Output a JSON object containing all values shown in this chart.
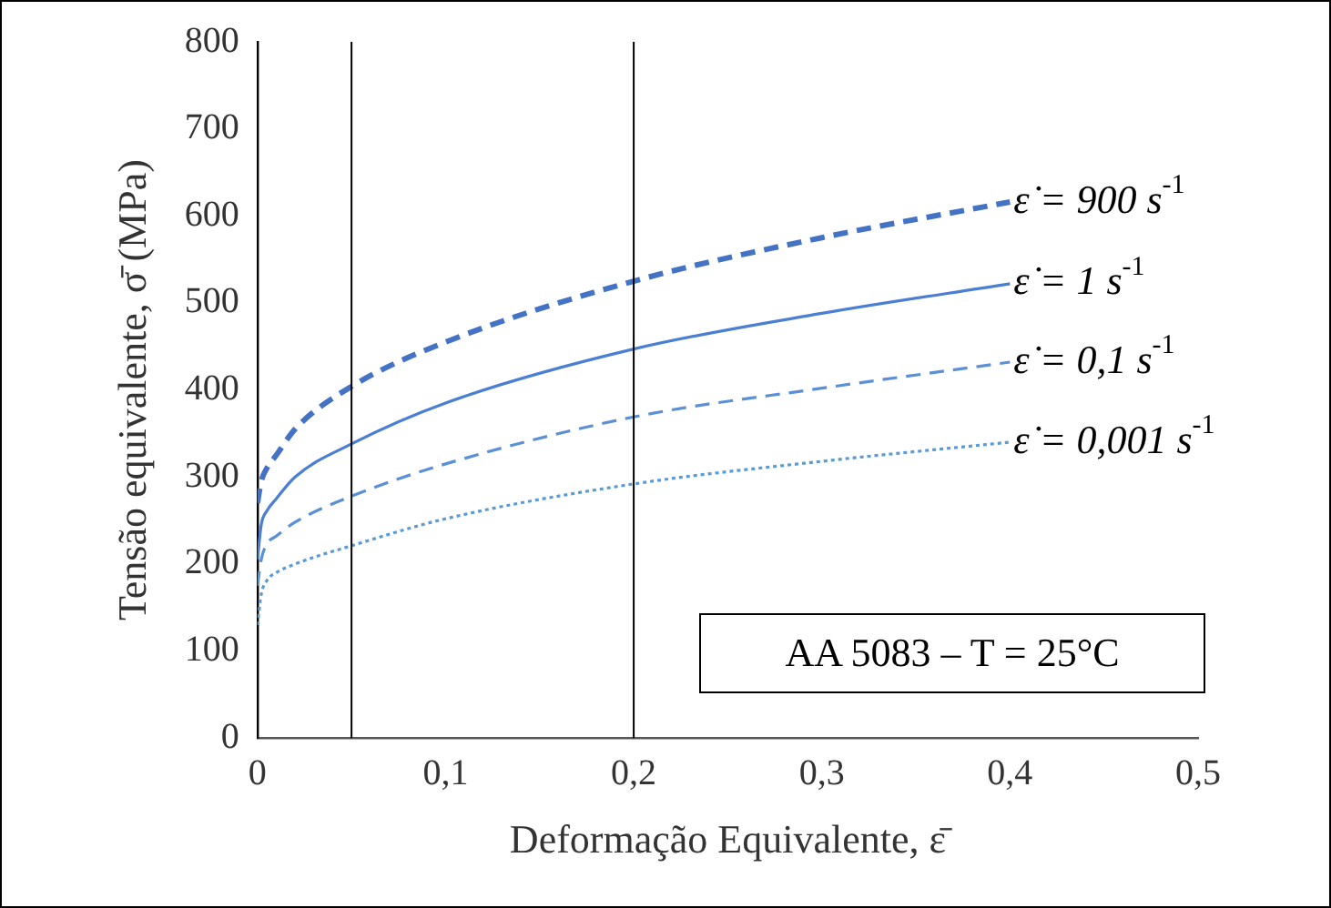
{
  "chart_data": {
    "type": "line",
    "xlabel": "Deformação Equivalente, ε̄",
    "ylabel": "Tensão equivalente, σ̄ (MPa)",
    "xlim": [
      0,
      0.5
    ],
    "xticks": [
      {
        "value": 0,
        "label": "0"
      },
      {
        "value": 0.1,
        "label": "0,1"
      },
      {
        "value": 0.2,
        "label": "0,2"
      },
      {
        "value": 0.3,
        "label": "0,3"
      },
      {
        "value": 0.4,
        "label": "0,4"
      },
      {
        "value": 0.5,
        "label": "0,5"
      }
    ],
    "ylim": [
      0,
      800
    ],
    "yticks": [
      0,
      100,
      200,
      300,
      400,
      500,
      600,
      700,
      800
    ],
    "grid": false,
    "legend": false,
    "marker": "none",
    "x": [
      0,
      0.002,
      0.005,
      0.01,
      0.02,
      0.05,
      0.1,
      0.2,
      0.3,
      0.4
    ],
    "series": [
      {
        "name": "ε̇ = 900 s$^{-1}$",
        "color": "#4472c4",
        "line_style": "dashed",
        "values": [
          270,
          295,
          310,
          325,
          355,
          404,
          455,
          525,
          575,
          616
        ]
      },
      {
        "name": "ε̇ = 1 s$^{-1}$",
        "color": "#4a7fd4",
        "line_style": "solid",
        "values": [
          205,
          245,
          261,
          275,
          300,
          338,
          385,
          447,
          488,
          522
        ]
      },
      {
        "name": "ε̇ = 0,1 s$^{-1}$",
        "color": "#5b8fd8",
        "line_style": "dashed",
        "values": [
          175,
          205,
          223,
          232,
          248,
          278,
          315,
          369,
          402,
          432
        ]
      },
      {
        "name": "ε̇ = 0,001 s$^{-1}$",
        "color": "#5b9bd5",
        "line_style": "dotted",
        "values": [
          130,
          165,
          181,
          190,
          200,
          221,
          252,
          292,
          318,
          340
        ]
      }
    ],
    "ref_lines": [
      {
        "axis": "x",
        "value": 0.05,
        "color": "#000000"
      },
      {
        "axis": "x",
        "value": 0.2,
        "color": "#000000"
      }
    ],
    "annotations": [
      "AA 5083 – T = 25°C"
    ]
  }
}
